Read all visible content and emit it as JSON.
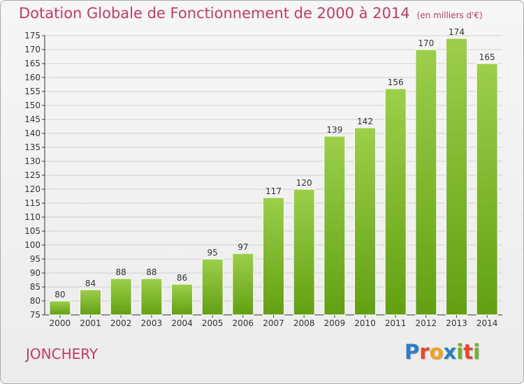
{
  "header": {
    "title": "Dotation Globale de Fonctionnement de 2000 à 2014",
    "unit": "(en milliers d'€)"
  },
  "footer": {
    "commune": "JONCHERY",
    "logo_text": "Proxiti"
  },
  "colors": {
    "title": "#c8396a",
    "bar_top": "#9ccf4a",
    "bar_bottom": "#62a012",
    "logo_letters": [
      "#2a7ec4",
      "#e6462a",
      "#f0a21c",
      "#2a7ec4",
      "#6cb32a",
      "#e6462a",
      "#6cb32a"
    ]
  },
  "chart_data": {
    "type": "bar",
    "categories": [
      "2000",
      "2001",
      "2002",
      "2003",
      "2004",
      "2005",
      "2006",
      "2007",
      "2008",
      "2009",
      "2010",
      "2011",
      "2012",
      "2013",
      "2014"
    ],
    "values": [
      80,
      84,
      88,
      88,
      86,
      95,
      97,
      117,
      120,
      139,
      142,
      156,
      170,
      174,
      165
    ],
    "ylim": [
      75,
      175
    ],
    "yticks": [
      75,
      80,
      85,
      90,
      95,
      100,
      105,
      110,
      115,
      120,
      125,
      130,
      135,
      140,
      145,
      150,
      155,
      160,
      165,
      170,
      175
    ],
    "grid": true
  }
}
